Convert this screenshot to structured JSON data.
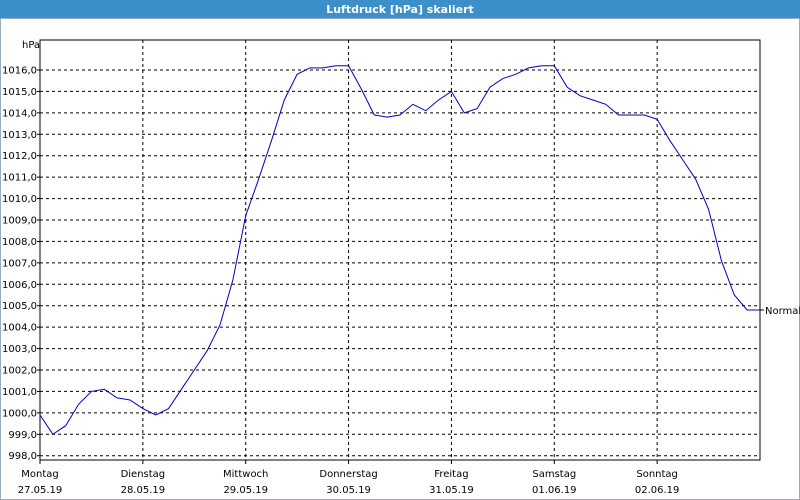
{
  "chart_data": {
    "type": "line",
    "title": "Luftdruck [hPa] skaliert",
    "ylabel": "hPa",
    "x_labels": [
      {
        "day": "Montag",
        "date": "27.05.19"
      },
      {
        "day": "Dienstag",
        "date": "28.05.19"
      },
      {
        "day": "Mittwoch",
        "date": "29.05.19"
      },
      {
        "day": "Donnerstag",
        "date": "30.05.19"
      },
      {
        "day": "Freitag",
        "date": "31.05.19"
      },
      {
        "day": "Samstag",
        "date": "01.06.19"
      },
      {
        "day": "Sonntag",
        "date": "02.06.19"
      }
    ],
    "series": [
      {
        "name": "Normal",
        "color": "#0000c0",
        "values": [
          999.9,
          999.0,
          999.4,
          1000.4,
          1001.0,
          1001.1,
          1000.7,
          1000.6,
          1000.2,
          999.9,
          1000.2,
          1001.1,
          1002.0,
          1002.9,
          1004.1,
          1006.2,
          1009.2,
          1010.9,
          1012.7,
          1014.6,
          1015.8,
          1016.1,
          1016.1,
          1016.2,
          1016.2,
          1015.1,
          1013.9,
          1013.8,
          1013.9,
          1014.4,
          1014.1,
          1014.6,
          1015.0,
          1014.0,
          1014.2,
          1015.2,
          1015.6,
          1015.8,
          1016.1,
          1016.2,
          1016.2,
          1015.2,
          1014.8,
          1014.6,
          1014.4,
          1013.9,
          1013.9,
          1013.9,
          1013.7,
          1012.7,
          1011.8,
          1010.9,
          1009.5,
          1007.1,
          1005.5,
          1004.8,
          1004.8
        ]
      }
    ],
    "ylim": [
      997.8,
      1017.4
    ],
    "yticks": [
      {
        "value": 998,
        "label": "998,0"
      },
      {
        "value": 999,
        "label": "999,0"
      },
      {
        "value": 1000,
        "label": "1000,0"
      },
      {
        "value": 1001,
        "label": "1001,0"
      },
      {
        "value": 1002,
        "label": "1002,0"
      },
      {
        "value": 1003,
        "label": "1003,0"
      },
      {
        "value": 1004,
        "label": "1004,0"
      },
      {
        "value": 1005,
        "label": "1005,0"
      },
      {
        "value": 1006,
        "label": "1006,0"
      },
      {
        "value": 1007,
        "label": "1007,0"
      },
      {
        "value": 1008,
        "label": "1008,0"
      },
      {
        "value": 1009,
        "label": "1009,0"
      },
      {
        "value": 1010,
        "label": "1010,0"
      },
      {
        "value": 1011,
        "label": "1011,0"
      },
      {
        "value": 1012,
        "label": "1012,0"
      },
      {
        "value": 1013,
        "label": "1013,0"
      },
      {
        "value": 1014,
        "label": "1014,0"
      },
      {
        "value": 1015,
        "label": "1015,0"
      },
      {
        "value": 1016,
        "label": "1016,0"
      }
    ],
    "grid": true
  }
}
